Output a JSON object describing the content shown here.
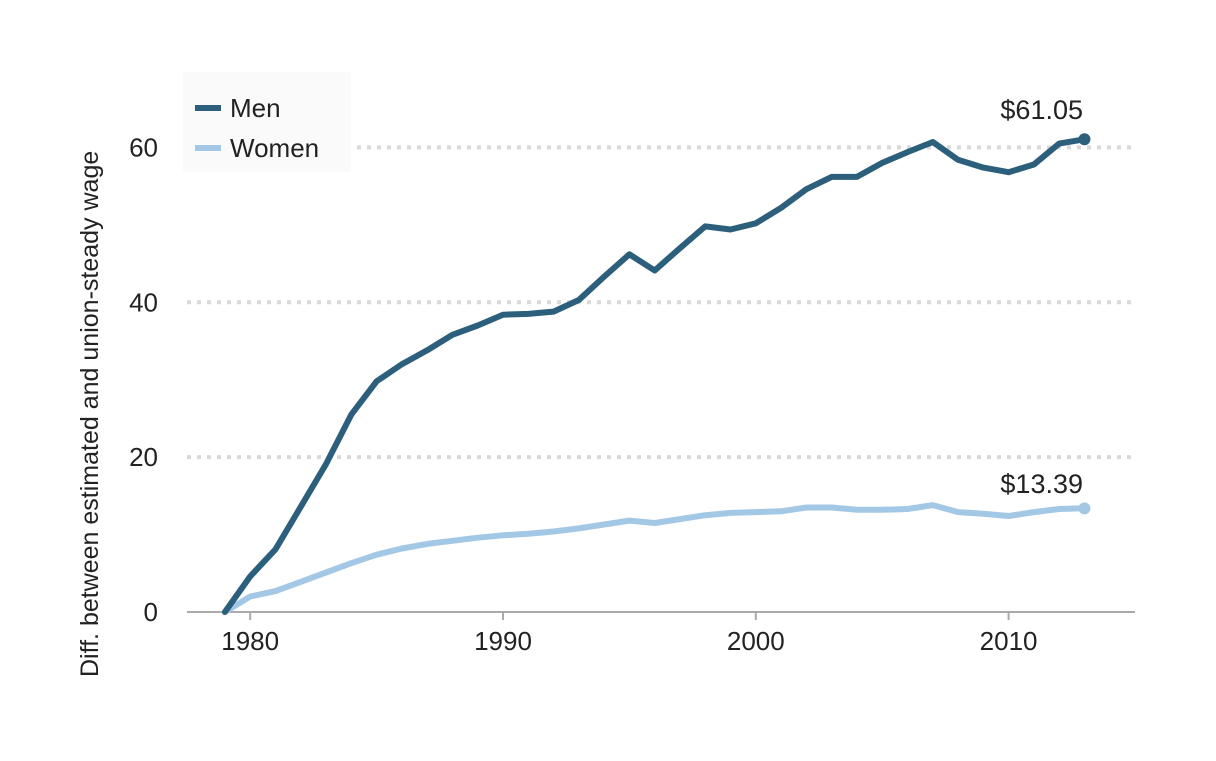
{
  "chart_data": {
    "type": "line",
    "ylabel": "Diff. between estimated and union-steady wage",
    "xlabel": "",
    "xlim": [
      1977.5,
      2015
    ],
    "ylim": [
      0,
      70
    ],
    "x_ticks": [
      1980,
      1990,
      2000,
      2010
    ],
    "y_ticks": [
      0,
      20,
      40,
      60
    ],
    "grid": "horizontal dotted",
    "legend": "top-left",
    "x": [
      1979,
      1980,
      1981,
      1982,
      1983,
      1984,
      1985,
      1986,
      1987,
      1988,
      1989,
      1990,
      1991,
      1992,
      1993,
      1994,
      1995,
      1996,
      1997,
      1998,
      1999,
      2000,
      2001,
      2002,
      2003,
      2004,
      2005,
      2006,
      2007,
      2008,
      2009,
      2010,
      2011,
      2012,
      2013
    ],
    "series": [
      {
        "name": "Men",
        "color": "#2c5f7c",
        "values": [
          0,
          4.6,
          8.1,
          13.6,
          19.1,
          25.5,
          29.8,
          32.0,
          33.8,
          35.8,
          37.0,
          38.4,
          38.5,
          38.8,
          40.3,
          43.3,
          46.2,
          44.1,
          47.0,
          49.8,
          49.4,
          50.2,
          52.2,
          54.6,
          56.2,
          56.2,
          58.0,
          59.4,
          60.7,
          58.4,
          57.4,
          56.8,
          57.8,
          60.5,
          61.05
        ],
        "end_label": "$61.05"
      },
      {
        "name": "Women",
        "color": "#a3c8e6",
        "values": [
          0,
          2.0,
          2.7,
          3.9,
          5.1,
          6.3,
          7.4,
          8.2,
          8.8,
          9.2,
          9.6,
          9.9,
          10.1,
          10.4,
          10.8,
          11.3,
          11.8,
          11.5,
          12.0,
          12.5,
          12.8,
          12.9,
          13.0,
          13.5,
          13.5,
          13.2,
          13.2,
          13.3,
          13.8,
          12.9,
          12.7,
          12.4,
          12.9,
          13.3,
          13.39
        ],
        "end_label": "$13.39"
      }
    ]
  }
}
